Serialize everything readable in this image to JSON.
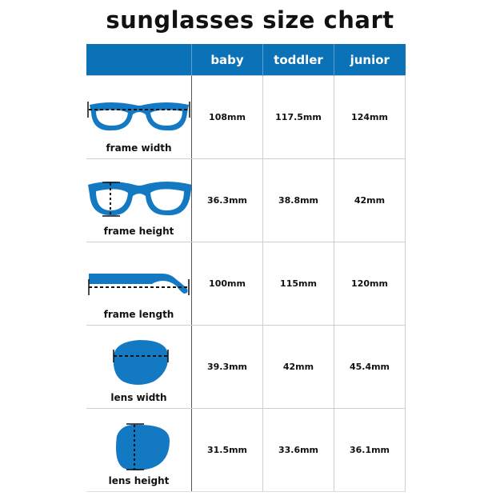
{
  "title": "sunglasses size chart",
  "columns": [
    "",
    "baby",
    "toddler",
    "junior"
  ],
  "accent_color": "#0c72b8",
  "rows": [
    {
      "label": "frame width",
      "icon": "glasses-width-icon",
      "values": [
        "108mm",
        "117.5mm",
        "124mm"
      ]
    },
    {
      "label": "frame height",
      "icon": "glasses-height-icon",
      "values": [
        "36.3mm",
        "38.8mm",
        "42mm"
      ]
    },
    {
      "label": "frame length",
      "icon": "temple-arm-length-icon",
      "values": [
        "100mm",
        "115mm",
        "120mm"
      ]
    },
    {
      "label": "lens width",
      "icon": "lens-width-icon",
      "values": [
        "39.3mm",
        "42mm",
        "45.4mm"
      ]
    },
    {
      "label": "lens height",
      "icon": "lens-height-icon",
      "values": [
        "31.5mm",
        "33.6mm",
        "36.1mm"
      ]
    }
  ]
}
